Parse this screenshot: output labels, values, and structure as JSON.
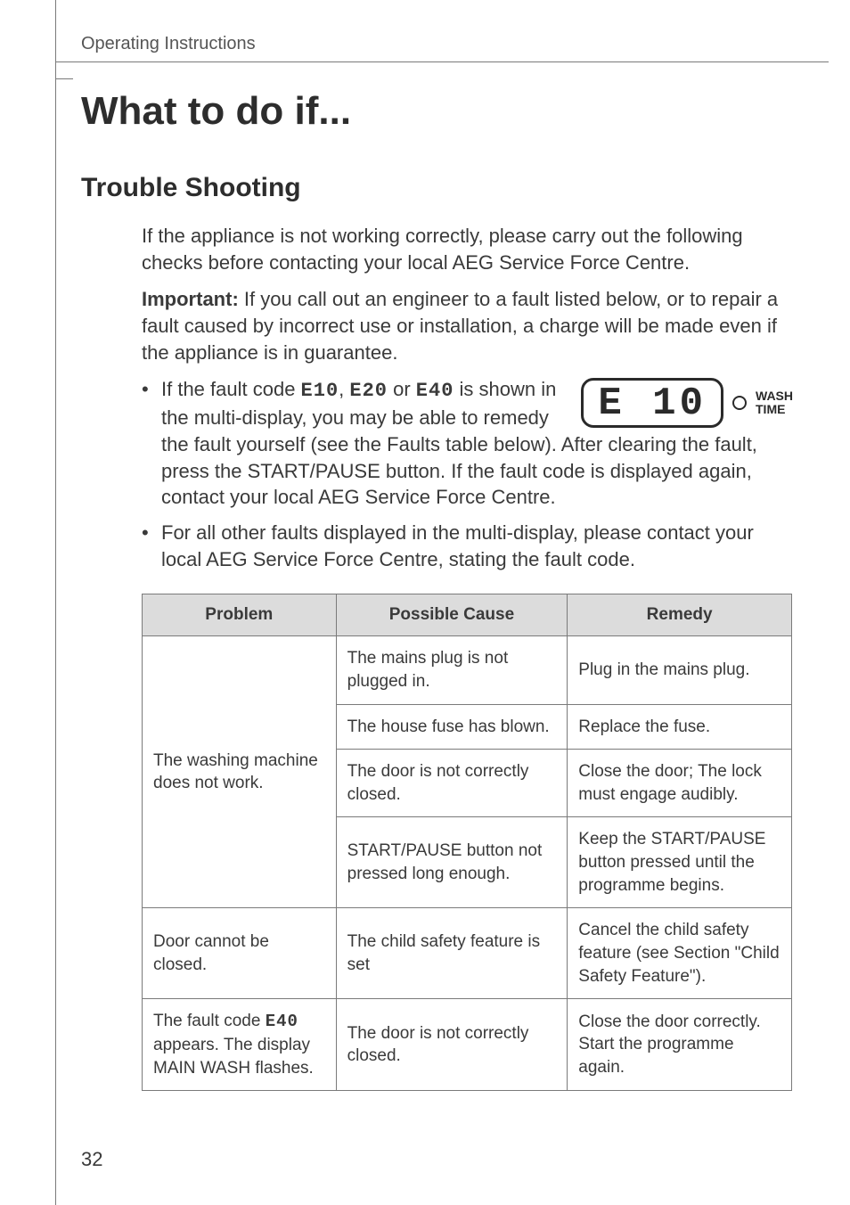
{
  "page": {
    "running_head": "Operating Instructions",
    "page_number": "32"
  },
  "headings": {
    "h1": "What to do if...",
    "h2": "Trouble Shooting"
  },
  "paragraphs": {
    "intro": "If the appliance is not working correctly, please carry out the following checks before contacting your local AEG Service Force Centre.",
    "important_label": "Important:",
    "important_body": "  If you call out an engineer to a fault listed below, or to repair a fault caused by incorrect use or installation, a charge will be made even if the appliance is in guarantee.",
    "bullet1_pre": "If the fault code ",
    "bullet1_c1": "E10",
    "bullet1_sep1": ", ",
    "bullet1_c2": "E20",
    "bullet1_sep2": " or ",
    "bullet1_c3": "E40",
    "bullet1_post": " is shown in the multi-display, you may be able to remedy the fault yourself (see the Faults table below). After clearing the fault, press the START/PAUSE button. If the fault code is displayed again, contact your local AEG Service Force Centre.",
    "bullet2": "For all other faults displayed in the multi-display, please contact your local AEG Service Force Centre, stating the fault code."
  },
  "lcd": {
    "code": "E 10",
    "label_line1": "WASH",
    "label_line2": "TIME"
  },
  "table": {
    "headers": {
      "problem": "Problem",
      "cause": "Possible Cause",
      "remedy": "Remedy"
    },
    "rows": [
      {
        "problem": "The washing machine does not work.",
        "cells": [
          {
            "cause": "The mains plug is not plugged in.",
            "remedy": "Plug in the mains plug."
          },
          {
            "cause": "The house fuse has blown.",
            "remedy": "Replace the fuse."
          },
          {
            "cause": "The door is not correctly closed.",
            "remedy": "Close the door; The lock must engage audibly."
          },
          {
            "cause": "START/PAUSE button not pressed long enough.",
            "remedy": "Keep the START/PAUSE button pressed until the programme begins."
          }
        ]
      },
      {
        "problem": "Door cannot be closed.",
        "cells": [
          {
            "cause": "The child safety feature is set",
            "remedy": "Cancel the child safety feature (see Section \"Child Safety Feature\")."
          }
        ]
      },
      {
        "problem_pre": "The fault code ",
        "problem_code": "E40",
        "problem_post": " appears. The display MAIN WASH flashes.",
        "cells": [
          {
            "cause": "The door is not correctly closed.",
            "remedy": "Close the door correctly. Start the programme again."
          }
        ]
      }
    ]
  },
  "style": {
    "page_bg": "#ffffff",
    "text_color": "#3a3a3a",
    "rule_color": "#7a7a7a",
    "th_bg": "#dcdcdc"
  }
}
